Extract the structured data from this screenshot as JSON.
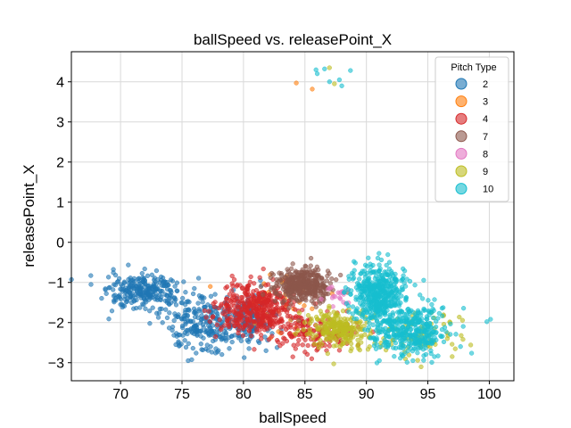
{
  "chart_data": {
    "type": "scatter",
    "title": "ballSpeed vs. releasePoint_X",
    "xlabel": "ballSpeed",
    "ylabel": "releasePoint_X",
    "xlim": [
      66,
      102
    ],
    "ylim": [
      -3.45,
      4.75
    ],
    "xticks": [
      70,
      75,
      80,
      85,
      90,
      95,
      100
    ],
    "yticks": [
      -3,
      -2,
      -1,
      0,
      1,
      2,
      3,
      4
    ],
    "grid": true,
    "legend": {
      "title": "Pitch Type",
      "placement": "top-right"
    },
    "series": [
      {
        "name": "2",
        "color": "#1f77b4",
        "clusters": [
          {
            "cx": 72.0,
            "cy": -1.25,
            "sx": 1.5,
            "sy": 0.22,
            "n": 260
          },
          {
            "cx": 77.0,
            "cy": -2.05,
            "sx": 1.8,
            "sy": 0.35,
            "n": 260
          },
          {
            "cx": 80.5,
            "cy": -1.9,
            "sx": 1.2,
            "sy": 0.3,
            "n": 120
          }
        ],
        "points": [
          [
            67.6,
            -1.05
          ],
          [
            70.0,
            -1.55
          ],
          [
            74.5,
            -2.55
          ],
          [
            75.5,
            -2.95
          ],
          [
            76.0,
            -1.15
          ]
        ]
      },
      {
        "name": "3",
        "color": "#ff7f0e",
        "clusters": [
          {
            "cx": 82.5,
            "cy": -1.6,
            "sx": 1.5,
            "sy": 0.35,
            "n": 40
          }
        ],
        "points": [
          [
            84.3,
            3.97
          ],
          [
            85.6,
            3.82
          ],
          [
            77.3,
            -1.1
          ],
          [
            83.5,
            -0.85
          ]
        ]
      },
      {
        "name": "4",
        "color": "#d62728",
        "clusters": [
          {
            "cx": 81.2,
            "cy": -1.65,
            "sx": 1.5,
            "sy": 0.35,
            "n": 420
          },
          {
            "cx": 86.0,
            "cy": -2.25,
            "sx": 1.6,
            "sy": 0.25,
            "n": 140
          }
        ],
        "points": []
      },
      {
        "name": "7",
        "color": "#8c564b",
        "clusters": [
          {
            "cx": 84.8,
            "cy": -1.05,
            "sx": 1.1,
            "sy": 0.22,
            "n": 380
          }
        ],
        "points": []
      },
      {
        "name": "8",
        "color": "#e377c2",
        "clusters": [
          {
            "cx": 87.5,
            "cy": -1.3,
            "sx": 0.6,
            "sy": 0.15,
            "n": 20
          }
        ],
        "points": []
      },
      {
        "name": "9",
        "color": "#bcbd22",
        "clusters": [
          {
            "cx": 87.8,
            "cy": -2.15,
            "sx": 1.2,
            "sy": 0.22,
            "n": 240
          },
          {
            "cx": 94.5,
            "cy": -2.3,
            "sx": 1.6,
            "sy": 0.3,
            "n": 80
          }
        ],
        "points": [
          [
            87.0,
            4.35
          ],
          [
            87.4,
            3.95
          ]
        ]
      },
      {
        "name": "10",
        "color": "#17becf",
        "clusters": [
          {
            "cx": 91.0,
            "cy": -1.3,
            "sx": 1.1,
            "sy": 0.35,
            "n": 460
          },
          {
            "cx": 93.5,
            "cy": -2.2,
            "sx": 1.5,
            "sy": 0.3,
            "n": 380
          }
        ],
        "points": [
          [
            86.0,
            4.2
          ],
          [
            86.6,
            4.32
          ],
          [
            87.0,
            4.0
          ],
          [
            88.0,
            3.9
          ],
          [
            88.7,
            4.28
          ],
          [
            87.8,
            4.05
          ],
          [
            85.9,
            4.3
          ],
          [
            99.8,
            -1.98
          ],
          [
            100.1,
            -1.92
          ]
        ]
      }
    ]
  }
}
